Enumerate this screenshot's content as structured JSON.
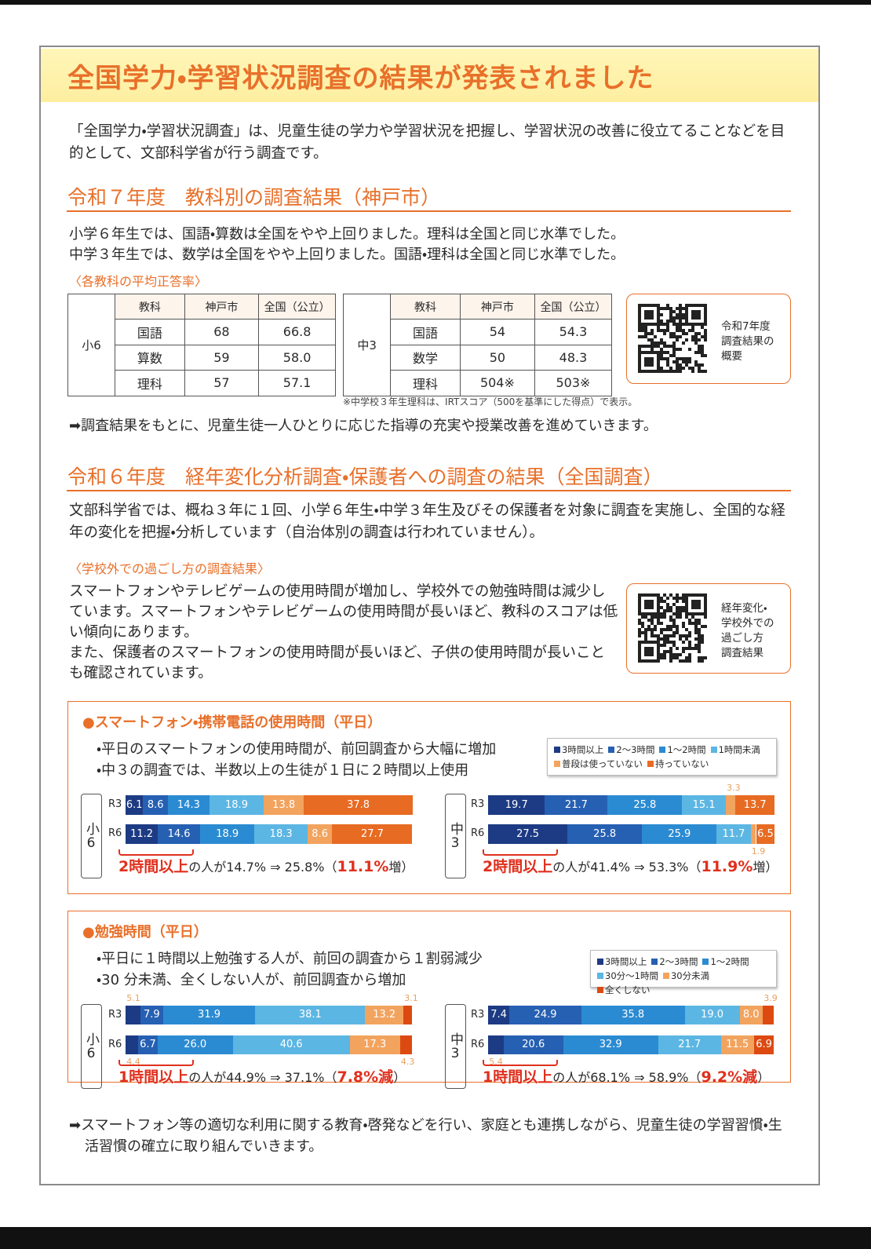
{
  "header": {
    "title": "全国学力・学習状況調査の結果が発表されました"
  },
  "intro": "「全国学力・学習状況調査」は、児童生徒の学力や学習状況を把握し、学習状況の改善に役立てることなどを目的として、文部科学省が行う調査です。",
  "section1": {
    "heading": "令和７年度　教科別の調査結果（神戸市）",
    "lines": [
      "小学６年生では、国語・算数は全国をやや上回りました。理科は全国と同じ水準でした。",
      "中学３年生では、数学は全国をやや上回りました。国語・理科は全国と同じ水準でした。"
    ],
    "subheading": "〈各教科の平均正答率〉",
    "tables": [
      {
        "group": "小6",
        "columns": [
          "教科",
          "神戸市",
          "全国（公立）"
        ],
        "rows": [
          [
            "国語",
            "68",
            "66.8"
          ],
          [
            "算数",
            "59",
            "58.0"
          ],
          [
            "理科",
            "57",
            "57.1"
          ]
        ]
      },
      {
        "group": "中3",
        "columns": [
          "教科",
          "神戸市",
          "全国（公立）"
        ],
        "rows": [
          [
            "国語",
            "54",
            "54.3"
          ],
          [
            "数学",
            "50",
            "48.3"
          ],
          [
            "理科",
            "504※",
            "503※"
          ]
        ]
      }
    ],
    "note": "※中学校３年生理科は、IRTスコア（500を基準にした得点）で表示。",
    "qr": {
      "lines": [
        "令和7年度",
        "調査結果の",
        "概要"
      ]
    },
    "conclusion": "➡調査結果をもとに、児童生徒一人ひとりに応じた指導の充実や授業改善を進めていきます。"
  },
  "section2": {
    "heading": "令和６年度　経年変化分析調査・保護者への調査の結果（全国調査）",
    "body": "文部科学省では、概ね３年に１回、小学６年生・中学３年生及びその保護者を対象に調査を実施し、全国的な経年の変化を把握・分析しています（自治体別の調査は行われていません）。",
    "subheading": "〈学校外での過ごし方の調査結果〉",
    "paragraphs": [
      "スマートフォンやテレビゲームの使用時間が増加し、学校外での勉強時間は減少しています。スマートフォンやテレビゲームの使用時間が長いほど、教科のスコアは低い傾向にあります。",
      "また、保護者のスマートフォンの使用時間が長いほど、子供の使用時間が長いことも確認されています。"
    ],
    "qr": {
      "lines": [
        "経年変化・",
        "学校外での",
        "過ごし方",
        "調査結果"
      ]
    },
    "charts": [
      {
        "type": "stacked-bar",
        "title": "●スマートフォン・携帯電話の使用時間（平日）",
        "bullets": [
          "・平日のスマートフォンの使用時間が、前回調査から大幅に増加",
          "・中３の調査では、半数以上の生徒が１日に２時間以上使用"
        ],
        "xlim": [
          0,
          100
        ],
        "series": [
          {
            "name": "3時間以上",
            "color": "#1d3b84"
          },
          {
            "name": "2～3時間",
            "color": "#2660b2"
          },
          {
            "name": "1～2時間",
            "color": "#2b8bd2"
          },
          {
            "name": "1時間未満",
            "color": "#5cb6e3"
          },
          {
            "name": "普段は使っていない",
            "color": "#f2a35e"
          },
          {
            "name": "持っていない",
            "color": "#e76b22"
          }
        ],
        "groups": [
          {
            "label": "小6",
            "rows": [
              {
                "label": "R3",
                "values": [
                  6.1,
                  8.6,
                  14.3,
                  18.9,
                  13.8,
                  37.8
                ],
                "value_labels": [
                  "6.1",
                  "8.6",
                  "14.3",
                  "18.9",
                  "13.8",
                  "37.8"
                ]
              },
              {
                "label": "R6",
                "values": [
                  11.2,
                  14.6,
                  18.9,
                  18.3,
                  8.6,
                  27.7
                ],
                "value_labels": [
                  "11.2",
                  "14.6",
                  "18.9",
                  "18.3",
                  "8.6",
                  "27.7"
                ]
              }
            ],
            "summary": {
              "lead": "2時間以上",
              "mid": "の人が14.7% ⇒ 25.8%（",
              "em": "11.1%",
              "tail": "増）"
            }
          },
          {
            "label": "中3",
            "rows": [
              {
                "label": "R3",
                "values": [
                  19.7,
                  21.7,
                  25.8,
                  15.1,
                  3.3,
                  13.7
                ],
                "value_labels": [
                  "19.7",
                  "21.7",
                  "25.8",
                  "15.1",
                  "3.3",
                  "13.7"
                ]
              },
              {
                "label": "R6",
                "values": [
                  27.5,
                  25.8,
                  25.9,
                  11.7,
                  1.9,
                  6.5
                ],
                "value_labels": [
                  "27.5",
                  "25.8",
                  "25.9",
                  "11.7",
                  "1.9",
                  "6.5"
                ]
              }
            ],
            "summary": {
              "lead": "2時間以上",
              "mid": "の人が41.4% ⇒ 53.3%（",
              "em": "11.9%",
              "tail": "増）"
            }
          }
        ]
      },
      {
        "type": "stacked-bar",
        "title": "●勉強時間（平日）",
        "bullets": [
          "・平日に１時間以上勉強する人が、前回の調査から１割弱減少",
          "・30 分未満、全くしない人が、前回調査から増加"
        ],
        "xlim": [
          0,
          100
        ],
        "series": [
          {
            "name": "3時間以上",
            "color": "#1d3b84"
          },
          {
            "name": "2～3時間",
            "color": "#2660b2"
          },
          {
            "name": "1～2時間",
            "color": "#2b8bd2"
          },
          {
            "name": "30分～1時間",
            "color": "#5cb6e3"
          },
          {
            "name": "30分未満",
            "color": "#f2a35e"
          },
          {
            "name": "全くしない",
            "color": "#dc4a12"
          }
        ],
        "groups": [
          {
            "label": "小6",
            "rows": [
              {
                "label": "R3",
                "values": [
                  5.1,
                  7.9,
                  31.9,
                  38.1,
                  13.2,
                  3.1
                ],
                "value_labels": [
                  "5.1",
                  "7.9",
                  "31.9",
                  "38.1",
                  "13.2",
                  "3.1"
                ]
              },
              {
                "label": "R6",
                "values": [
                  4.4,
                  6.7,
                  26.0,
                  40.6,
                  17.3,
                  4.3
                ],
                "value_labels": [
                  "4.4",
                  "6.7",
                  "26.0",
                  "40.6",
                  "17.3",
                  "4.3"
                ]
              }
            ],
            "summary": {
              "lead": "1時間以上",
              "mid": "の人が44.9% ⇒ 37.1%（",
              "em": "7.8%減",
              "tail": "）"
            }
          },
          {
            "label": "中3",
            "rows": [
              {
                "label": "R3",
                "values": [
                  7.4,
                  24.9,
                  35.8,
                  19.0,
                  8.0,
                  3.9
                ],
                "value_labels": [
                  "7.4",
                  "24.9",
                  "35.8",
                  "19.0",
                  "8.0",
                  "3.9"
                ]
              },
              {
                "label": "R6",
                "values": [
                  5.4,
                  20.6,
                  32.9,
                  21.7,
                  11.5,
                  6.9
                ],
                "value_labels": [
                  "5.4",
                  "20.6",
                  "32.9",
                  "21.7",
                  "11.5",
                  "6.9"
                ]
              }
            ],
            "summary": {
              "lead": "1時間以上",
              "mid": "の人が68.1% ⇒ 58.9%（",
              "em": "9.2%減",
              "tail": "）"
            }
          }
        ]
      }
    ],
    "conclusion": "➡スマートフォン等の適切な利用に関する教育・啓発などを行い、家庭とも連携しながら、児童生徒の学習習慣・生活習慣の確立に取り組んでいきます。"
  }
}
